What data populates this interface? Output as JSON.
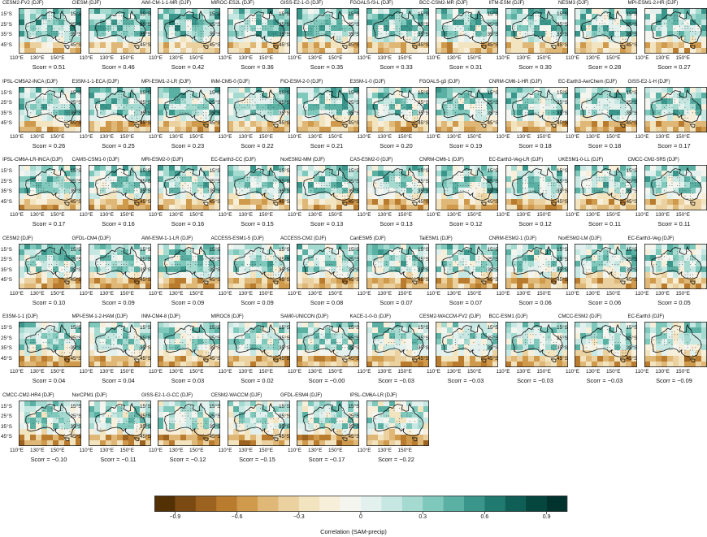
{
  "season": "DJF",
  "y_ticks": [
    "15°S",
    "25°S",
    "35°S",
    "45°S"
  ],
  "x_ticks": [
    "110°E",
    "130°E",
    "150°E"
  ],
  "scorr_label": "Scorr = ",
  "panels": [
    {
      "model": "CESM2-FV2 (DJF)",
      "scorr": "0.51"
    },
    {
      "model": "CIESM (DJF)",
      "scorr": "0.46"
    },
    {
      "model": "AWI-CM-1-1-MR (DJF)",
      "scorr": "0.42"
    },
    {
      "model": "MIROC-ES2L (DJF)",
      "scorr": "0.36"
    },
    {
      "model": "GISS-E2-1-G (DJF)",
      "scorr": "0.35"
    },
    {
      "model": "FGOALS-f3-L (DJF)",
      "scorr": "0.33"
    },
    {
      "model": "BCC-CSM2-MR (DJF)",
      "scorr": "0.31"
    },
    {
      "model": "IITM-ESM (DJF)",
      "scorr": "0.30"
    },
    {
      "model": "NESM3 (DJF)",
      "scorr": "0.28"
    },
    {
      "model": "MPI-ESM1-2-HR (DJF)",
      "scorr": "0.27"
    },
    {
      "model": "IPSL-CM5A2-INCA (DJF)",
      "scorr": "0.26"
    },
    {
      "model": "E3SM-1-1-ECA (DJF)",
      "scorr": "0.25"
    },
    {
      "model": "MPI-ESM1-2-LR (DJF)",
      "scorr": "0.23"
    },
    {
      "model": "INM-CM5-0 (DJF)",
      "scorr": "0.22"
    },
    {
      "model": "FIO-ESM-2-0 (DJF)",
      "scorr": "0.21"
    },
    {
      "model": "E3SM-1-0 (DJF)",
      "scorr": "0.20"
    },
    {
      "model": "FGOALS-g3 (DJF)",
      "scorr": "0.19"
    },
    {
      "model": "CNRM-CM6-1-HR (DJF)",
      "scorr": "0.18"
    },
    {
      "model": "EC-Earth3-AerChem (DJF)",
      "scorr": "0.18"
    },
    {
      "model": "GISS-E2-1-H (DJF)",
      "scorr": "0.17"
    },
    {
      "model": "IPSL-CM6A-LR-INCA (DJF)",
      "scorr": "0.17"
    },
    {
      "model": "CAMS-CSM1-0 (DJF)",
      "scorr": "0.16"
    },
    {
      "model": "MRI-ESM2-0 (DJF)",
      "scorr": "0.16"
    },
    {
      "model": "EC-Earth3-CC (DJF)",
      "scorr": "0.15"
    },
    {
      "model": "NorESM2-MM (DJF)",
      "scorr": "0.13"
    },
    {
      "model": "CAS-ESM2-0 (DJF)",
      "scorr": "0.13"
    },
    {
      "model": "CNRM-CM6-1 (DJF)",
      "scorr": "0.12"
    },
    {
      "model": "EC-Earth3-Veg-LR (DJF)",
      "scorr": "0.12"
    },
    {
      "model": "UKESM1-0-LL (DJF)",
      "scorr": "0.11"
    },
    {
      "model": "CMCC-CM2-SR5 (DJF)",
      "scorr": "0.11"
    },
    {
      "model": "CESM2 (DJF)",
      "scorr": "0.10"
    },
    {
      "model": "GFDL-CM4 (DJF)",
      "scorr": "0.09"
    },
    {
      "model": "AWI-ESM-1-1-LR (DJF)",
      "scorr": "0.09"
    },
    {
      "model": "ACCESS-ESM1-5 (DJF)",
      "scorr": "0.09"
    },
    {
      "model": "ACCESS-CM2 (DJF)",
      "scorr": "0.08"
    },
    {
      "model": "CanESM5 (DJF)",
      "scorr": "0.07"
    },
    {
      "model": "TaiESM1 (DJF)",
      "scorr": "0.07"
    },
    {
      "model": "CNRM-ESM2-1 (DJF)",
      "scorr": "0.06"
    },
    {
      "model": "NorESM2-LM (DJF)",
      "scorr": "0.06"
    },
    {
      "model": "EC-Earth3-Veg (DJF)",
      "scorr": "0.05"
    },
    {
      "model": "E3SM-1-1 (DJF)",
      "scorr": "0.04"
    },
    {
      "model": "MPI-ESM-1-2-HAM (DJF)",
      "scorr": "0.04"
    },
    {
      "model": "INM-CM4-8 (DJF)",
      "scorr": "0.03"
    },
    {
      "model": "MIROC6 (DJF)",
      "scorr": "0.02"
    },
    {
      "model": "SAM0-UNICON (DJF)",
      "scorr": "−0.00"
    },
    {
      "model": "KACE-1-0-G (DJF)",
      "scorr": "−0.03"
    },
    {
      "model": "CESM2-WACCM-FV2 (DJF)",
      "scorr": "−0.03"
    },
    {
      "model": "BCC-ESM1 (DJF)",
      "scorr": "−0.03"
    },
    {
      "model": "CMCC-ESM2 (DJF)",
      "scorr": "−0.03"
    },
    {
      "model": "EC-Earth3 (DJF)",
      "scorr": "−0.09"
    },
    {
      "model": "CMCC-CM2-HR4 (DJF)",
      "scorr": "−0.10"
    },
    {
      "model": "NorCPM1 (DJF)",
      "scorr": "−0.11"
    },
    {
      "model": "GISS-E2-1-G-CC (DJF)",
      "scorr": "−0.12"
    },
    {
      "model": "CESM2-WACCM (DJF)",
      "scorr": "−0.15"
    },
    {
      "model": "GFDL-ESM4 (DJF)",
      "scorr": "−0.17"
    },
    {
      "model": "IPSL-CM6A-LR (DJF)",
      "scorr": "−0.22"
    }
  ],
  "colorbar": {
    "label": "Correlation (SAM-precip)",
    "tick_labels": [
      "−0.9",
      "−0.6",
      "−0.3",
      "0",
      "0.3",
      "0.6",
      "0.9"
    ],
    "tick_values": [
      -0.9,
      -0.6,
      -0.3,
      0,
      0.3,
      0.6,
      0.9
    ],
    "range": [
      -1.0,
      1.0
    ],
    "colors": [
      "#543005",
      "#7a4a12",
      "#9c6320",
      "#b97b2e",
      "#cf9a4c",
      "#dfb776",
      "#ebd19f",
      "#f3e4c0",
      "#f8efda",
      "#f5f5f0",
      "#e3f1ee",
      "#c7e8e2",
      "#a5dad1",
      "#7fc8bc",
      "#5bb0a4",
      "#3a968b",
      "#207a70",
      "#0f5f57",
      "#05463f",
      "#01332e"
    ]
  }
}
